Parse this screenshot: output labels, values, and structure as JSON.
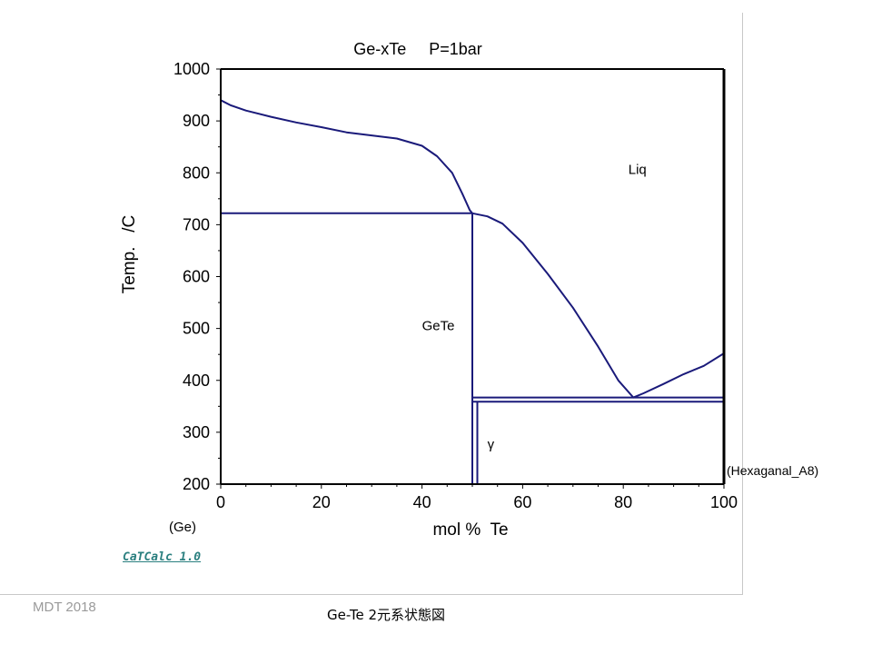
{
  "chart_data": {
    "type": "line",
    "title": "Ge-xTe     P=1bar",
    "xlabel": "mol %  Te",
    "ylabel": "Temp.   /C",
    "xlim": [
      0,
      100
    ],
    "ylim": [
      200,
      1000
    ],
    "x_ticks": [
      "0",
      "20",
      "40",
      "60",
      "80",
      "100"
    ],
    "y_ticks": [
      "1000",
      "900",
      "800",
      "700",
      "600",
      "500",
      "400",
      "300",
      "200"
    ],
    "grid": false,
    "series": [
      {
        "x": [
          0,
          2,
          5,
          10,
          15,
          20,
          25,
          30,
          35,
          40,
          43,
          46,
          48,
          49.5,
          50
        ],
        "y": [
          940,
          930,
          920,
          908,
          897,
          888,
          878,
          872,
          866,
          852,
          832,
          800,
          760,
          728,
          722
        ]
      },
      {
        "x": [
          50,
          53,
          56,
          60,
          65,
          70,
          75,
          79,
          82,
          84,
          88,
          92,
          96,
          100
        ],
        "y": [
          722,
          716,
          702,
          665,
          605,
          540,
          465,
          400,
          367,
          375,
          393,
          412,
          428,
          452
        ]
      },
      {
        "x": [
          0,
          50
        ],
        "y": [
          722,
          722
        ]
      },
      {
        "x": [
          50,
          50
        ],
        "y": [
          200,
          722
        ]
      },
      {
        "x": [
          50,
          100
        ],
        "y": [
          367,
          367
        ]
      },
      {
        "x": [
          50,
          100
        ],
        "y": [
          359,
          359
        ]
      },
      {
        "x": [
          51,
          51
        ],
        "y": [
          200,
          359
        ]
      }
    ],
    "annotations": [
      {
        "text": "Liq",
        "x": 81,
        "y": 798
      },
      {
        "text": "GeTe",
        "x": 40,
        "y": 497
      },
      {
        "text": "γ",
        "x": 53,
        "y": 268
      }
    ]
  },
  "labels": {
    "ge_end": "(Ge)",
    "te_end": "(Hexaganal_A8)",
    "software": "CaTCalc 1.0",
    "credit": "MDT   2018",
    "caption": "Ge-Te  2元系状態図"
  },
  "colors": {
    "curve": "#1a1a7a",
    "axis": "#000000"
  }
}
